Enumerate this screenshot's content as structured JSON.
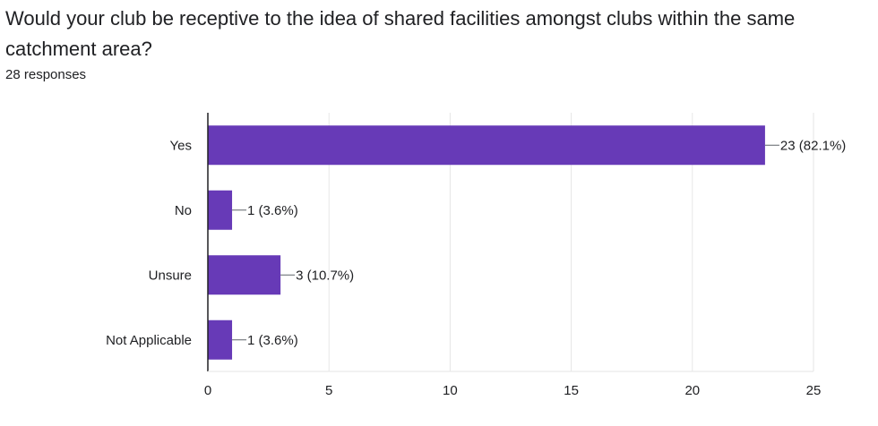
{
  "header": {
    "question": "Would your club be receptive to the idea of shared facilities amongst clubs within the same catchment area?",
    "responses": "28 responses"
  },
  "colors": {
    "bar": "#673ab7",
    "grid": "#e6e6e6",
    "axis": "#202124",
    "leader": "#5f6368"
  },
  "chart_data": {
    "type": "bar",
    "orientation": "horizontal",
    "title": "Would your club be receptive to the idea of shared facilities amongst clubs within the same catchment area?",
    "categories": [
      "Yes",
      "No",
      "Unsure",
      "Not Applicable"
    ],
    "values": [
      23,
      1,
      3,
      1
    ],
    "labels": [
      "23 (82.1%)",
      "1 (3.6%)",
      "3 (10.7%)",
      "1 (3.6%)"
    ],
    "xlim": [
      0,
      25
    ],
    "xticks": [
      0,
      5,
      10,
      15,
      20,
      25
    ],
    "xlabel": "",
    "ylabel": "",
    "grid": true
  }
}
